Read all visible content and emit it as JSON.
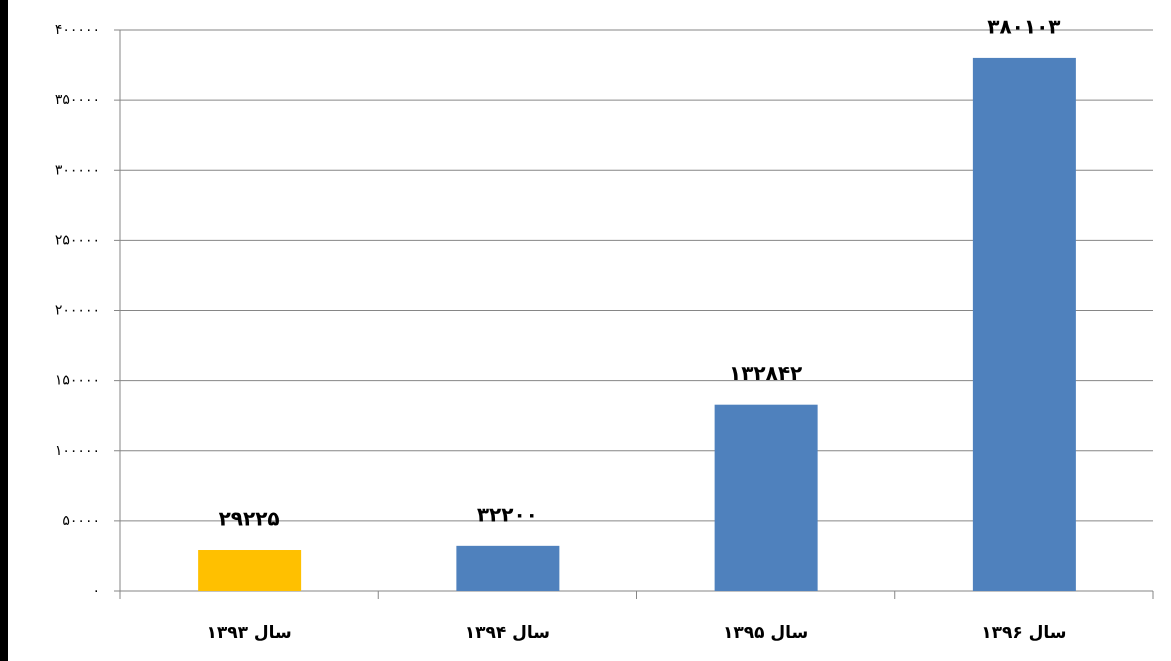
{
  "chart_data": {
    "type": "bar",
    "categories": [
      "سال ۱۳۹۳",
      "سال ۱۳۹۴",
      "سال ۱۳۹۵",
      "سال ۱۳۹۶"
    ],
    "values": [
      29225,
      32200,
      132842,
      380103
    ],
    "value_labels": [
      "۲۹۲۲۵",
      "۳۲۲۰۰",
      "۱۳۲۸۴۲",
      "۳۸۰۱۰۳"
    ],
    "colors": [
      "#ffc000",
      "#4f81bd",
      "#4f81bd",
      "#4f81bd"
    ],
    "ylim": [
      0,
      400000
    ],
    "yticks": [
      {
        "value": 0,
        "label": "۰"
      },
      {
        "value": 50000,
        "label": "۵۰۰۰۰"
      },
      {
        "value": 100000,
        "label": "۱۰۰۰۰۰"
      },
      {
        "value": 150000,
        "label": "۱۵۰۰۰۰"
      },
      {
        "value": 200000,
        "label": "۲۰۰۰۰۰"
      },
      {
        "value": 250000,
        "label": "۲۵۰۰۰۰"
      },
      {
        "value": 300000,
        "label": "۳۰۰۰۰۰"
      },
      {
        "value": 350000,
        "label": "۳۵۰۰۰۰"
      },
      {
        "value": 400000,
        "label": "۴۰۰۰۰۰"
      }
    ],
    "grid": true
  }
}
